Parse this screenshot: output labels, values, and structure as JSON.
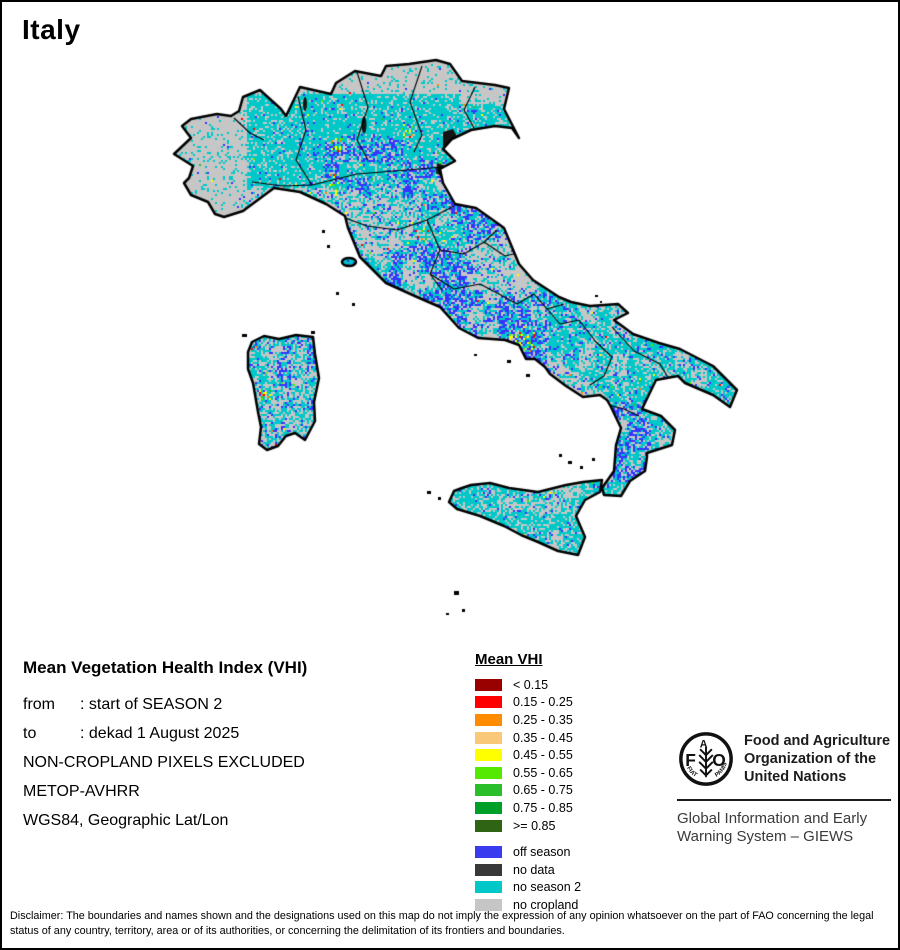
{
  "title": "Italy",
  "info": {
    "heading": "Mean Vegetation Health Index (VHI)",
    "rows": [
      {
        "label": "from",
        "value": ": start of SEASON 2"
      },
      {
        "label": "to",
        "value": ": dekad 1 August 2025"
      }
    ],
    "lines": [
      "NON-CROPLAND PIXELS EXCLUDED",
      "METOP-AVHRR",
      "WGS84, Geographic Lat/Lon"
    ]
  },
  "legend": {
    "title": "Mean VHI",
    "vhi_classes": [
      {
        "label": "< 0.15",
        "color": "#990000"
      },
      {
        "label": "0.15 - 0.25",
        "color": "#FF0000"
      },
      {
        "label": "0.25 - 0.35",
        "color": "#FF8C00"
      },
      {
        "label": "0.35 - 0.45",
        "color": "#F9C878"
      },
      {
        "label": "0.45 - 0.55",
        "color": "#FFFF00"
      },
      {
        "label": "0.55 - 0.65",
        "color": "#55E800"
      },
      {
        "label": "0.65 - 0.75",
        "color": "#2ABF2A"
      },
      {
        "label": "0.75 - 0.85",
        "color": "#00A028"
      },
      {
        "label": ">= 0.85",
        "color": "#2E6414"
      }
    ],
    "season_classes": [
      {
        "label": "off season",
        "color": "#3A3AEE"
      },
      {
        "label": "no data",
        "color": "#383838"
      },
      {
        "label": "no season 2",
        "color": "#00C8C8"
      },
      {
        "label": "no cropland",
        "color": "#C6C6C6"
      }
    ]
  },
  "branding": {
    "fao_logo": "fao-emblem",
    "fao_letters": {
      "f": "F",
      "a": "A",
      "o": "O",
      "fiat": "FIAT",
      "panis": "PANIS"
    },
    "org_lines": [
      "Food and Agriculture",
      "Organization of the",
      "United Nations"
    ],
    "giews_lines": [
      "Global Information and Early",
      "Warning System – GIEWS"
    ]
  },
  "disclaimer": "Disclaimer: The boundaries and names shown and the designations used on this map do not imply the expression of any opinion whatsoever on the part of FAO concerning the legal status of any country, territory, area or of its authorities, or concerning the delimitation of its frontiers and boundaries.",
  "map": {
    "palette": {
      "no_cropland": "#C6C6C6",
      "no_season2": "#00C8C8",
      "off_season": "#3535FF",
      "no_data": "#141414",
      "outline": "#000000",
      "region_border": "#000000",
      "specks": [
        "#FFFF00",
        "#55E800",
        "#2ABF2A",
        "#FF0000",
        "#FF8C00"
      ]
    }
  }
}
